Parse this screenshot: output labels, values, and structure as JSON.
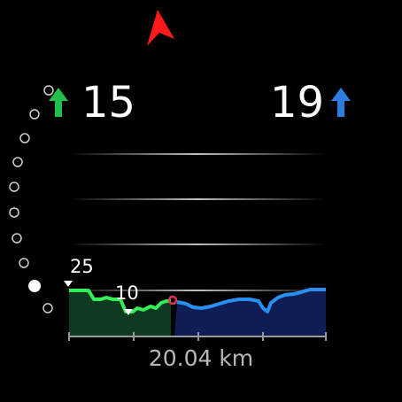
{
  "left_stat": {
    "value": "15",
    "arrow": "up",
    "color": "#22c04a"
  },
  "right_stat": {
    "value": "19",
    "arrow": "up",
    "color": "#2a7fe0"
  },
  "profile": {
    "label_high": "25",
    "label_low": "10",
    "distance": "20.04 km",
    "completed_color": "#33ee55",
    "remaining_color": "#2a90f0",
    "position_marker_color": "#e0335a"
  },
  "heading_marker_color": "#ff1a1a",
  "progress_dots": {
    "total": 12,
    "filled_index": 10
  }
}
